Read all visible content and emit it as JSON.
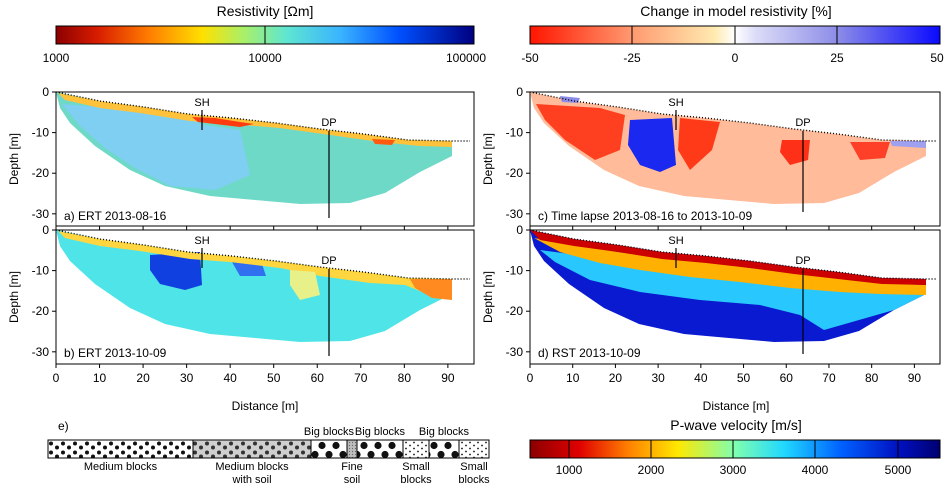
{
  "colorbars": {
    "resistivity": {
      "title": "Resistivity [Ωm]",
      "ticks": [
        "1000",
        "10000",
        "100000"
      ],
      "scale": "log"
    },
    "change": {
      "title": "Change in model resistivity [%]",
      "ticks": [
        "-50",
        "-25",
        "0",
        "25",
        "50"
      ]
    },
    "velocity": {
      "title": "P-wave velocity [m/s]",
      "ticks": [
        "1000",
        "2000",
        "3000",
        "4000",
        "5000"
      ]
    }
  },
  "panels": {
    "a": {
      "label": "a) ERT 2013-08-16"
    },
    "b": {
      "label": "b) ERT 2013-10-09"
    },
    "c": {
      "label": "c) Time lapse 2013-08-16 to 2013-10-09"
    },
    "d": {
      "label": "d) RST 2013-10-09"
    }
  },
  "markers": {
    "sh": "SH",
    "dp": "DP"
  },
  "axes": {
    "xlabel": "Distance [m]",
    "ylabel": "Depth [m]",
    "xticks": [
      "0",
      "10",
      "20",
      "30",
      "40",
      "50",
      "60",
      "70",
      "80",
      "90"
    ],
    "yticks": [
      "0",
      "-10",
      "-20",
      "-30"
    ]
  },
  "legend_e": {
    "label": "e)",
    "units": [
      {
        "top": "",
        "bottom": "Medium blocks",
        "texture": "medium"
      },
      {
        "top": "",
        "bottom": "Medium blocks\nwith soil",
        "texture": "medium-soil"
      },
      {
        "top": "Big blocks",
        "bottom": "",
        "texture": "big"
      },
      {
        "top": "",
        "bottom": "Fine\nsoil",
        "texture": "fine"
      },
      {
        "top": "Big blocks",
        "bottom": "",
        "texture": "big"
      },
      {
        "top": "",
        "bottom": "Small\nblocks",
        "texture": "small"
      },
      {
        "top": "Big blocks",
        "bottom": "",
        "texture": "big"
      },
      {
        "top": "",
        "bottom": "Small\nblocks",
        "texture": "small"
      }
    ]
  },
  "chart_data": [
    {
      "type": "heatmap",
      "title": "a) ERT 2013-08-16",
      "xlabel": "Distance [m]",
      "ylabel": "Depth [m]",
      "xlim": [
        0,
        96
      ],
      "ylim": [
        -33,
        0
      ],
      "surface": [
        [
          0,
          0
        ],
        [
          10,
          -2
        ],
        [
          20,
          -3.5
        ],
        [
          30,
          -5
        ],
        [
          40,
          -6
        ],
        [
          50,
          -7
        ],
        [
          60,
          -8.5
        ],
        [
          70,
          -10
        ],
        [
          80,
          -11.5
        ],
        [
          90,
          -11.8
        ],
        [
          95,
          -11.8
        ]
      ],
      "markers": [
        {
          "name": "SH",
          "x": 34
        },
        {
          "name": "DP",
          "x": 64
        }
      ],
      "colormap": "resistivity"
    },
    {
      "type": "heatmap",
      "title": "b) ERT 2013-10-09",
      "xlabel": "Distance [m]",
      "ylabel": "Depth [m]",
      "xlim": [
        0,
        96
      ],
      "ylim": [
        -33,
        0
      ],
      "surface": [
        [
          0,
          0
        ],
        [
          10,
          -2
        ],
        [
          20,
          -3.5
        ],
        [
          30,
          -5
        ],
        [
          40,
          -6
        ],
        [
          50,
          -7
        ],
        [
          60,
          -8.5
        ],
        [
          70,
          -10
        ],
        [
          80,
          -11.5
        ],
        [
          90,
          -11.8
        ],
        [
          95,
          -11.8
        ]
      ],
      "markers": [
        {
          "name": "SH",
          "x": 34
        },
        {
          "name": "DP",
          "x": 64
        }
      ],
      "colormap": "resistivity"
    },
    {
      "type": "heatmap",
      "title": "c) Time lapse 2013-08-16 to 2013-10-09",
      "xlabel": "Distance [m]",
      "ylabel": "Depth [m]",
      "xlim": [
        0,
        96
      ],
      "ylim": [
        -33,
        0
      ],
      "surface": [
        [
          0,
          0
        ],
        [
          10,
          -2
        ],
        [
          20,
          -3.5
        ],
        [
          30,
          -5
        ],
        [
          40,
          -6
        ],
        [
          50,
          -7
        ],
        [
          60,
          -8.5
        ],
        [
          70,
          -10
        ],
        [
          80,
          -11.5
        ],
        [
          90,
          -11.8
        ],
        [
          95,
          -11.8
        ]
      ],
      "markers": [
        {
          "name": "SH",
          "x": 34
        },
        {
          "name": "DP",
          "x": 64
        }
      ],
      "colormap": "change"
    },
    {
      "type": "heatmap",
      "title": "d) RST 2013-10-09",
      "xlabel": "Distance [m]",
      "ylabel": "Depth [m]",
      "xlim": [
        0,
        96
      ],
      "ylim": [
        -33,
        0
      ],
      "surface": [
        [
          0,
          0
        ],
        [
          10,
          -2
        ],
        [
          20,
          -3.5
        ],
        [
          30,
          -5
        ],
        [
          40,
          -6
        ],
        [
          50,
          -7
        ],
        [
          60,
          -8.5
        ],
        [
          70,
          -10
        ],
        [
          80,
          -11.5
        ],
        [
          90,
          -11.8
        ],
        [
          95,
          -11.8
        ]
      ],
      "markers": [
        {
          "name": "SH",
          "x": 34
        },
        {
          "name": "DP",
          "x": 64
        }
      ],
      "colormap": "velocity"
    }
  ]
}
